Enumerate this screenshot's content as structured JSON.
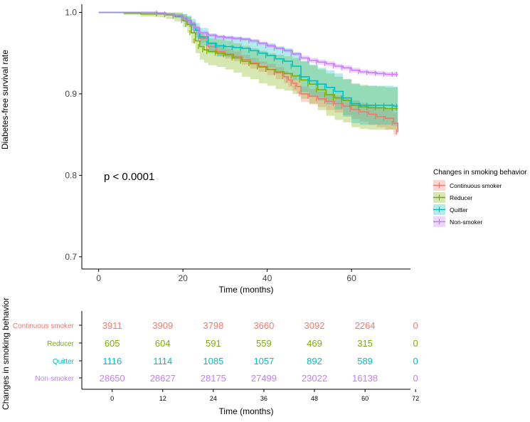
{
  "chart_data": {
    "type": "line",
    "subtype": "kaplan-meier",
    "ylabel": "Diabetes-free survival rate",
    "xlabel": "Time (months)",
    "xlim": [
      -4,
      74
    ],
    "ylim": [
      0.685,
      1.01
    ],
    "x_ticks": [
      0,
      20,
      40,
      60
    ],
    "y_ticks": [
      0.7,
      0.8,
      0.9,
      1.0
    ],
    "y_tick_labels": [
      "0.7",
      "0.8",
      "0.9",
      "1.0"
    ],
    "annotation": "p < 0.0001",
    "legend": {
      "title": "Changes in smoking behavior",
      "position": "right",
      "entries": [
        "Continuous smoker",
        "Reducer",
        "Quitter",
        "Non-smoker"
      ]
    },
    "series": [
      {
        "name": "Continuous smoker",
        "color": "#f8766d",
        "x": [
          0,
          10,
          14,
          16,
          18,
          20,
          21,
          22,
          23,
          24,
          26,
          28,
          30,
          32,
          34,
          36,
          38,
          40,
          42,
          44,
          45,
          46,
          47,
          48,
          50,
          52,
          54,
          56,
          58,
          60,
          62,
          64,
          66,
          68,
          70,
          71
        ],
        "y": [
          1.0,
          1.0,
          0.999,
          0.998,
          0.996,
          0.993,
          0.99,
          0.985,
          0.978,
          0.968,
          0.958,
          0.952,
          0.949,
          0.946,
          0.942,
          0.938,
          0.934,
          0.93,
          0.926,
          0.921,
          0.917,
          0.913,
          0.909,
          0.9,
          0.897,
          0.894,
          0.891,
          0.888,
          0.885,
          0.881,
          0.878,
          0.875,
          0.872,
          0.87,
          0.864,
          0.853
        ],
        "ci_upper": [
          1.0,
          1.0,
          1.0,
          0.999,
          0.998,
          0.996,
          0.994,
          0.989,
          0.983,
          0.973,
          0.964,
          0.958,
          0.955,
          0.952,
          0.948,
          0.944,
          0.94,
          0.937,
          0.933,
          0.928,
          0.925,
          0.921,
          0.917,
          0.909,
          0.906,
          0.903,
          0.9,
          0.898,
          0.895,
          0.892,
          0.889,
          0.887,
          0.884,
          0.882,
          0.877,
          0.868
        ],
        "ci_lower": [
          1.0,
          1.0,
          0.998,
          0.996,
          0.994,
          0.99,
          0.986,
          0.981,
          0.973,
          0.963,
          0.952,
          0.946,
          0.943,
          0.94,
          0.936,
          0.931,
          0.927,
          0.923,
          0.918,
          0.913,
          0.909,
          0.904,
          0.9,
          0.89,
          0.887,
          0.884,
          0.88,
          0.877,
          0.874,
          0.869,
          0.866,
          0.862,
          0.859,
          0.856,
          0.85,
          0.838
        ]
      },
      {
        "name": "Reducer",
        "color": "#7cae00",
        "x": [
          0,
          6,
          10,
          14,
          16,
          18,
          20,
          21,
          22,
          23,
          24,
          25,
          26,
          28,
          30,
          32,
          34,
          36,
          38,
          40,
          42,
          44,
          46,
          48,
          50,
          52,
          54,
          56,
          58,
          60,
          62,
          64,
          66,
          68,
          70,
          71
        ],
        "y": [
          1.0,
          0.999,
          0.998,
          0.998,
          0.997,
          0.995,
          0.99,
          0.985,
          0.975,
          0.965,
          0.958,
          0.954,
          0.952,
          0.95,
          0.948,
          0.944,
          0.94,
          0.937,
          0.933,
          0.93,
          0.927,
          0.925,
          0.922,
          0.917,
          0.912,
          0.905,
          0.899,
          0.895,
          0.892,
          0.886,
          0.884,
          0.883,
          0.883,
          0.882,
          0.882,
          0.882
        ],
        "ci_upper": [
          1.0,
          1.0,
          1.0,
          1.0,
          1.0,
          1.0,
          0.998,
          0.995,
          0.988,
          0.98,
          0.974,
          0.97,
          0.968,
          0.967,
          0.965,
          0.962,
          0.959,
          0.956,
          0.953,
          0.95,
          0.948,
          0.946,
          0.944,
          0.94,
          0.936,
          0.93,
          0.925,
          0.921,
          0.918,
          0.913,
          0.911,
          0.91,
          0.909,
          0.908,
          0.908,
          0.908
        ],
        "ci_lower": [
          1.0,
          0.997,
          0.995,
          0.994,
          0.992,
          0.989,
          0.982,
          0.975,
          0.962,
          0.95,
          0.942,
          0.938,
          0.935,
          0.933,
          0.93,
          0.926,
          0.921,
          0.918,
          0.913,
          0.91,
          0.906,
          0.904,
          0.9,
          0.894,
          0.888,
          0.88,
          0.873,
          0.868,
          0.865,
          0.859,
          0.857,
          0.856,
          0.856,
          0.856,
          0.856,
          0.856
        ]
      },
      {
        "name": "Quitter",
        "color": "#00bfc4",
        "x": [
          0,
          10,
          14,
          16,
          18,
          20,
          21,
          22,
          23,
          24,
          26,
          28,
          30,
          32,
          34,
          36,
          38,
          40,
          42,
          44,
          46,
          48,
          50,
          52,
          54,
          56,
          58,
          60,
          62,
          64,
          66,
          68,
          70,
          71
        ],
        "y": [
          1.0,
          1.0,
          0.999,
          0.998,
          0.996,
          0.993,
          0.99,
          0.985,
          0.978,
          0.97,
          0.962,
          0.959,
          0.958,
          0.957,
          0.956,
          0.953,
          0.95,
          0.947,
          0.943,
          0.94,
          0.934,
          0.921,
          0.916,
          0.912,
          0.908,
          0.903,
          0.895,
          0.888,
          0.886,
          0.886,
          0.886,
          0.886,
          0.885,
          0.885
        ],
        "ci_upper": [
          1.0,
          1.0,
          1.0,
          0.999,
          0.999,
          0.998,
          0.996,
          0.992,
          0.987,
          0.981,
          0.974,
          0.972,
          0.971,
          0.97,
          0.969,
          0.967,
          0.964,
          0.962,
          0.958,
          0.956,
          0.951,
          0.94,
          0.935,
          0.932,
          0.929,
          0.925,
          0.918,
          0.912,
          0.91,
          0.91,
          0.91,
          0.91,
          0.909,
          0.909
        ],
        "ci_lower": [
          1.0,
          1.0,
          0.998,
          0.997,
          0.993,
          0.988,
          0.984,
          0.978,
          0.969,
          0.959,
          0.95,
          0.946,
          0.945,
          0.944,
          0.943,
          0.939,
          0.936,
          0.932,
          0.928,
          0.924,
          0.917,
          0.902,
          0.897,
          0.892,
          0.887,
          0.881,
          0.872,
          0.864,
          0.862,
          0.862,
          0.862,
          0.862,
          0.861,
          0.861
        ]
      },
      {
        "name": "Non-smoker",
        "color": "#c77cff",
        "x": [
          0,
          10,
          14,
          16,
          18,
          20,
          21,
          22,
          23,
          24,
          26,
          28,
          30,
          32,
          34,
          36,
          38,
          40,
          42,
          44,
          46,
          48,
          50,
          52,
          54,
          56,
          58,
          60,
          62,
          64,
          66,
          68,
          70,
          71
        ],
        "y": [
          1.0,
          1.0,
          0.999,
          0.998,
          0.996,
          0.993,
          0.99,
          0.986,
          0.981,
          0.975,
          0.972,
          0.97,
          0.969,
          0.968,
          0.967,
          0.965,
          0.962,
          0.959,
          0.956,
          0.953,
          0.949,
          0.944,
          0.941,
          0.939,
          0.937,
          0.934,
          0.932,
          0.929,
          0.927,
          0.926,
          0.925,
          0.924,
          0.924,
          0.924
        ],
        "ci_upper": [
          1.0,
          1.0,
          1.0,
          0.999,
          0.997,
          0.994,
          0.991,
          0.987,
          0.983,
          0.977,
          0.974,
          0.972,
          0.971,
          0.97,
          0.969,
          0.967,
          0.964,
          0.961,
          0.958,
          0.955,
          0.951,
          0.947,
          0.944,
          0.942,
          0.94,
          0.937,
          0.935,
          0.932,
          0.93,
          0.929,
          0.928,
          0.927,
          0.927,
          0.927
        ],
        "ci_lower": [
          1.0,
          1.0,
          0.998,
          0.997,
          0.995,
          0.992,
          0.989,
          0.985,
          0.979,
          0.973,
          0.97,
          0.968,
          0.967,
          0.966,
          0.965,
          0.963,
          0.96,
          0.957,
          0.954,
          0.951,
          0.947,
          0.941,
          0.938,
          0.936,
          0.934,
          0.931,
          0.929,
          0.926,
          0.924,
          0.923,
          0.922,
          0.921,
          0.921,
          0.921
        ]
      }
    ],
    "risk_table": {
      "ylabel": "Changes in smoking behavior",
      "xlabel": "Time (months)",
      "time_points": [
        0,
        12,
        24,
        36,
        48,
        60,
        72
      ],
      "rows": [
        {
          "name": "Continuous smoker",
          "color": "#f8766d",
          "counts": [
            3911,
            3909,
            3798,
            3660,
            3092,
            2264,
            0
          ]
        },
        {
          "name": "Reducer",
          "color": "#7cae00",
          "counts": [
            605,
            604,
            591,
            559,
            469,
            315,
            0
          ]
        },
        {
          "name": "Quitter",
          "color": "#00bfc4",
          "counts": [
            1116,
            1114,
            1085,
            1057,
            892,
            589,
            0
          ]
        },
        {
          "name": "Non-smoker",
          "color": "#c77cff",
          "counts": [
            28650,
            28627,
            28175,
            27499,
            23022,
            16138,
            0
          ]
        }
      ]
    }
  }
}
